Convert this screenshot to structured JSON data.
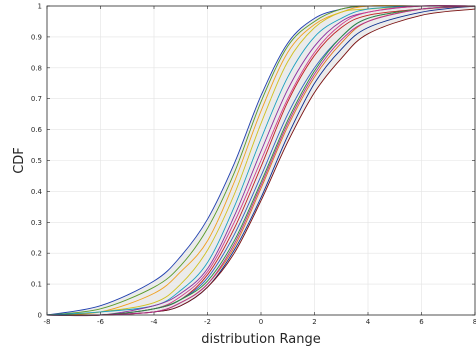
{
  "chart_data": {
    "type": "line",
    "xlabel": "distribution Range",
    "ylabel": "CDF",
    "xlim": [
      -8,
      8
    ],
    "ylim": [
      0,
      1
    ],
    "x_ticks": [
      -8,
      -6,
      -4,
      -2,
      0,
      2,
      4,
      6,
      8
    ],
    "y_ticks": [
      0,
      0.1,
      0.2,
      0.3,
      0.4,
      0.5,
      0.6,
      0.7,
      0.8,
      0.9,
      1
    ],
    "x_tick_labels": [
      "-8",
      "-6",
      "-4",
      "-2",
      "0",
      "2",
      "4",
      "6",
      "8"
    ],
    "y_tick_labels": [
      "0",
      "0.1",
      "0.2",
      "0.3",
      "0.4",
      "0.5",
      "0.6",
      "0.7",
      "0.8",
      "0.9",
      "1"
    ],
    "grid": true,
    "x": [
      -8,
      -6,
      -4,
      -3,
      -2,
      -1,
      0,
      1,
      2,
      3,
      4,
      6,
      8
    ],
    "band": {
      "fill": "#ebebeb",
      "lower": [
        0,
        0,
        0.01,
        0.03,
        0.09,
        0.2,
        0.37,
        0.56,
        0.72,
        0.83,
        0.91,
        0.97,
        0.99
      ],
      "upper": [
        0,
        0.03,
        0.11,
        0.19,
        0.31,
        0.49,
        0.71,
        0.88,
        0.96,
        0.99,
        1,
        1,
        1
      ]
    },
    "series": [
      {
        "color": "#0b2e8f",
        "values": [
          0,
          0,
          0.01,
          0.03,
          0.09,
          0.21,
          0.38,
          0.58,
          0.75,
          0.86,
          0.93,
          0.98,
          1
        ]
      },
      {
        "color": "#1f3fb0",
        "values": [
          0,
          0.03,
          0.11,
          0.19,
          0.31,
          0.49,
          0.71,
          0.88,
          0.96,
          0.99,
          1,
          1,
          1
        ]
      },
      {
        "color": "#5a9a2a",
        "values": [
          0,
          0.02,
          0.09,
          0.16,
          0.28,
          0.46,
          0.69,
          0.87,
          0.95,
          0.99,
          1,
          1,
          1
        ]
      },
      {
        "color": "#f0a020",
        "values": [
          0,
          0.01,
          0.07,
          0.14,
          0.24,
          0.43,
          0.66,
          0.85,
          0.94,
          0.98,
          1,
          1,
          1
        ]
      },
      {
        "color": "#d0c020",
        "values": [
          0,
          0.01,
          0.04,
          0.1,
          0.21,
          0.39,
          0.62,
          0.82,
          0.93,
          0.98,
          0.99,
          1,
          1
        ]
      },
      {
        "color": "#1aa0c0",
        "values": [
          0,
          0.01,
          0.03,
          0.08,
          0.17,
          0.35,
          0.57,
          0.77,
          0.9,
          0.96,
          0.99,
          1,
          1
        ]
      },
      {
        "color": "#8a2f9f",
        "values": [
          0,
          0,
          0.03,
          0.07,
          0.15,
          0.32,
          0.53,
          0.73,
          0.87,
          0.95,
          0.98,
          1,
          1
        ]
      },
      {
        "color": "#c02020",
        "values": [
          0,
          0,
          0.02,
          0.05,
          0.13,
          0.28,
          0.48,
          0.69,
          0.84,
          0.93,
          0.97,
          0.99,
          1
        ]
      },
      {
        "color": "#d23a8a",
        "values": [
          0,
          0,
          0.02,
          0.06,
          0.14,
          0.3,
          0.5,
          0.7,
          0.85,
          0.94,
          0.98,
          1,
          1
        ]
      },
      {
        "color": "#3060c0",
        "values": [
          0,
          0,
          0.02,
          0.05,
          0.12,
          0.26,
          0.45,
          0.65,
          0.8,
          0.9,
          0.96,
          0.99,
          1
        ]
      },
      {
        "color": "#2a8a3a",
        "values": [
          0,
          0,
          0.02,
          0.05,
          0.11,
          0.24,
          0.43,
          0.63,
          0.79,
          0.9,
          0.96,
          0.99,
          1
        ]
      },
      {
        "color": "#e07020",
        "values": [
          0,
          0,
          0.01,
          0.04,
          0.1,
          0.22,
          0.41,
          0.61,
          0.77,
          0.88,
          0.95,
          0.99,
          1
        ]
      },
      {
        "color": "#7a1010",
        "values": [
          0,
          0,
          0.01,
          0.03,
          0.09,
          0.2,
          0.37,
          0.56,
          0.72,
          0.83,
          0.91,
          0.97,
          0.99
        ]
      },
      {
        "color": "#b03090",
        "values": [
          0,
          0,
          0.01,
          0.04,
          0.1,
          0.23,
          0.42,
          0.62,
          0.78,
          0.89,
          0.95,
          0.99,
          1
        ]
      }
    ]
  }
}
